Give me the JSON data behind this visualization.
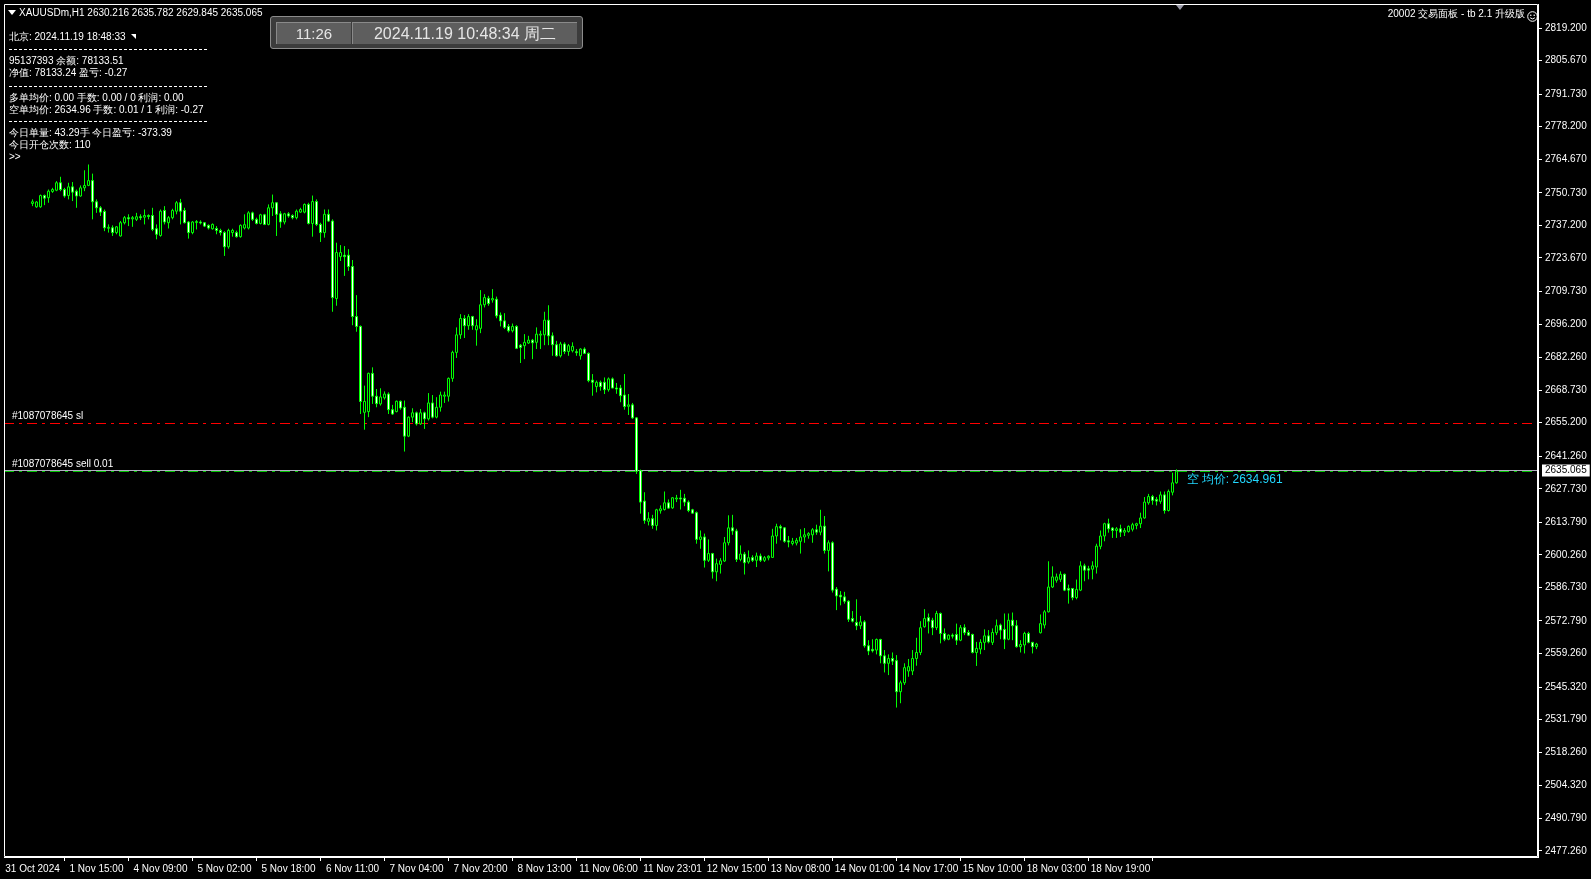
{
  "chart_data": {
    "type": "candlestick",
    "title": "XAUUSDm,H1 2630.216 2635.782 2629.845 2635.065",
    "categories": [
      "31 Oct 2024",
      null,
      null,
      null,
      null,
      null,
      null,
      null,
      null,
      null,
      null,
      null,
      null,
      null,
      null,
      null,
      "1 Nov 15:00",
      null,
      null,
      null,
      null,
      null,
      null,
      null,
      null,
      null,
      null,
      null,
      null,
      null,
      null,
      null,
      "4 Nov 09:00",
      null,
      null,
      null,
      null,
      null,
      null,
      null,
      null,
      null,
      null,
      null,
      null,
      null,
      null,
      null,
      "5 Nov 02:00",
      null,
      null,
      null,
      null,
      null,
      null,
      null,
      null,
      null,
      null,
      null,
      null,
      null,
      null,
      null,
      "5 Nov 18:00",
      null,
      null,
      null,
      null,
      null,
      null,
      null,
      null,
      null,
      null,
      null,
      null,
      null,
      null,
      null,
      "6 Nov 11:00",
      null,
      null,
      null,
      null,
      null,
      null,
      null,
      null,
      null,
      null,
      null,
      null,
      null,
      null,
      null,
      "7 Nov 04:00",
      null,
      null,
      null,
      null,
      null,
      null,
      null,
      null,
      null,
      null,
      null,
      null,
      null,
      null,
      null,
      "7 Nov 20:00",
      null,
      null,
      null,
      null,
      null,
      null,
      null,
      null,
      null,
      null,
      null,
      null,
      null,
      null,
      null,
      "8 Nov 13:00",
      null,
      null,
      null,
      null,
      null,
      null,
      null,
      null,
      null,
      null,
      null,
      null,
      null,
      null,
      null,
      "11 Nov 06:00",
      null,
      null,
      null,
      null,
      null,
      null,
      null,
      null,
      null,
      null,
      null,
      null,
      null,
      null,
      null,
      "11 Nov 23:01",
      null,
      null,
      null,
      null,
      null,
      null,
      null,
      null,
      null,
      null,
      null,
      null,
      null,
      null,
      null,
      "12 Nov 15:00",
      null,
      null,
      null,
      null,
      null,
      null,
      null,
      null,
      null,
      null,
      null,
      null,
      null,
      null,
      null,
      "13 Nov 08:00",
      null,
      null,
      null,
      null,
      null,
      null,
      null,
      null,
      null,
      null,
      null,
      null,
      null,
      null,
      null,
      "14 Nov 01:00",
      null,
      null,
      null,
      null,
      null,
      null,
      null,
      null,
      null,
      null,
      null,
      null,
      null,
      null,
      null,
      "14 Nov 17:00",
      null,
      null,
      null,
      null,
      null,
      null,
      null,
      null,
      null,
      null,
      null,
      null,
      null,
      null,
      null,
      "15 Nov 10:00",
      null,
      null,
      null,
      null,
      null,
      null,
      null,
      null,
      null,
      null,
      null,
      null,
      null,
      null,
      null,
      "18 Nov 03:00",
      null,
      null,
      null,
      null,
      null,
      null,
      null,
      null,
      null,
      null,
      null,
      null,
      null,
      null,
      null,
      "18 Nov 19:00",
      null,
      null,
      null,
      null,
      null,
      null,
      null,
      null,
      null,
      null,
      null,
      null,
      null,
      null,
      null,
      null,
      null,
      null,
      null,
      null,
      null,
      null,
      null,
      null,
      null,
      null,
      null,
      null,
      null,
      null,
      null,
      null,
      null,
      null,
      null,
      null,
      null,
      null,
      null,
      null,
      null,
      null,
      null,
      null,
      null,
      null,
      null,
      null,
      null,
      null,
      null,
      null,
      null,
      null,
      null,
      null,
      null,
      null,
      null,
      null,
      null,
      null,
      null,
      null,
      null,
      null,
      null,
      null,
      null,
      null,
      null,
      null,
      null,
      null,
      null,
      null,
      null,
      null,
      null,
      null,
      null,
      null,
      null,
      null,
      null,
      null,
      null,
      null,
      null,
      null,
      null,
      null,
      null,
      null,
      null,
      null,
      null,
      null,
      null,
      null,
      null,
      null,
      null
    ],
    "ohlc": [
      [
        2746.3,
        2748.0,
        2745.2,
        2747.0
      ],
      [
        2744.9,
        2747.3,
        2744.5,
        2746.9
      ],
      [
        2744.9,
        2750.0,
        2744.5,
        2749.6
      ],
      [
        2749.6,
        2750.0,
        2745.6,
        2748.5
      ],
      [
        2748.7,
        2752.1,
        2746.6,
        2751.4
      ],
      [
        2751.3,
        2752.8,
        2750.7,
        2752.1
      ],
      [
        2751.8,
        2755.6,
        2751.4,
        2754.9
      ],
      [
        2754.9,
        2757.4,
        2751.4,
        2752.1
      ],
      [
        2752.1,
        2752.8,
        2748.7,
        2749.4
      ],
      [
        2749.6,
        2754.9,
        2748.0,
        2753.2
      ],
      [
        2753.2,
        2755.2,
        2747.3,
        2751.0
      ],
      [
        2751.4,
        2752.1,
        2744.5,
        2749.4
      ],
      [
        2749.4,
        2753.8,
        2749.1,
        2752.8
      ],
      [
        2752.8,
        2760.1,
        2751.4,
        2753.8
      ],
      [
        2753.8,
        2762.5,
        2753.5,
        2755.8
      ],
      [
        2755.8,
        2758.7,
        2739.7,
        2747.0
      ],
      [
        2747.0,
        2748.0,
        2742.4,
        2744.5
      ],
      [
        2744.5,
        2745.2,
        2741.1,
        2742.7
      ],
      [
        2743.0,
        2743.8,
        2734.8,
        2736.2
      ],
      [
        2736.2,
        2737.6,
        2734.2,
        2736.4
      ],
      [
        2736.2,
        2737.2,
        2732.8,
        2734.2
      ],
      [
        2734.2,
        2736.9,
        2733.5,
        2736.6
      ],
      [
        2732.8,
        2739.0,
        2732.5,
        2738.3
      ],
      [
        2738.3,
        2741.1,
        2737.6,
        2740.4
      ],
      [
        2740.4,
        2741.8,
        2736.9,
        2739.9
      ],
      [
        2739.9,
        2741.1,
        2736.6,
        2740.4
      ],
      [
        2739.7,
        2742.4,
        2739.0,
        2740.8
      ],
      [
        2740.8,
        2741.8,
        2739.4,
        2740.6
      ],
      [
        2740.6,
        2743.8,
        2737.6,
        2741.3
      ],
      [
        2741.3,
        2741.8,
        2739.7,
        2741.1
      ],
      [
        2741.3,
        2744.5,
        2734.8,
        2735.5
      ],
      [
        2735.8,
        2737.6,
        2731.4,
        2733.5
      ],
      [
        2733.0,
        2743.8,
        2732.5,
        2743.1
      ],
      [
        2743.4,
        2745.2,
        2737.6,
        2738.6
      ],
      [
        2738.3,
        2741.1,
        2735.9,
        2740.4
      ],
      [
        2740.4,
        2744.1,
        2739.7,
        2743.4
      ],
      [
        2743.1,
        2747.3,
        2741.8,
        2746.6
      ],
      [
        2746.6,
        2748.2,
        2737.6,
        2743.1
      ],
      [
        2743.4,
        2744.5,
        2738.0,
        2738.3
      ],
      [
        2738.6,
        2739.0,
        2731.7,
        2734.2
      ],
      [
        2734.2,
        2739.0,
        2733.5,
        2738.6
      ],
      [
        2738.6,
        2739.4,
        2735.5,
        2738.8
      ],
      [
        2738.6,
        2739.3,
        2737.6,
        2738.3
      ],
      [
        2738.3,
        2738.6,
        2736.5,
        2736.9
      ],
      [
        2737.2,
        2737.6,
        2735.5,
        2736.1
      ],
      [
        2735.8,
        2738.0,
        2735.4,
        2737.6
      ],
      [
        2735.9,
        2736.9,
        2733.5,
        2735.1
      ],
      [
        2735.1,
        2735.8,
        2733.0,
        2734.2
      ],
      [
        2734.2,
        2734.8,
        2724.5,
        2728.3
      ],
      [
        2728.3,
        2735.8,
        2727.5,
        2735.1
      ],
      [
        2734.2,
        2735.8,
        2732.5,
        2735.1
      ],
      [
        2734.2,
        2735.0,
        2732.1,
        2732.5
      ],
      [
        2732.5,
        2737.6,
        2732.1,
        2737.2
      ],
      [
        2736.1,
        2741.8,
        2735.5,
        2737.5
      ],
      [
        2736.1,
        2743.1,
        2735.5,
        2742.4
      ],
      [
        2742.4,
        2742.9,
        2739.0,
        2739.7
      ],
      [
        2739.7,
        2740.4,
        2737.6,
        2738.0
      ],
      [
        2738.0,
        2742.0,
        2737.6,
        2741.6
      ],
      [
        2741.6,
        2742.0,
        2737.3,
        2737.6
      ],
      [
        2737.6,
        2745.9,
        2737.2,
        2744.5
      ],
      [
        2744.5,
        2750.0,
        2741.1,
        2746.6
      ],
      [
        2746.6,
        2746.9,
        2732.8,
        2741.8
      ],
      [
        2742.0,
        2743.1,
        2736.2,
        2738.6
      ],
      [
        2738.6,
        2742.4,
        2737.6,
        2742.0
      ],
      [
        2742.0,
        2742.7,
        2740.4,
        2741.1
      ],
      [
        2741.3,
        2741.8,
        2739.7,
        2740.4
      ],
      [
        2740.4,
        2743.8,
        2739.7,
        2743.1
      ],
      [
        2742.7,
        2744.5,
        2742.4,
        2743.8
      ],
      [
        2742.7,
        2746.3,
        2742.2,
        2745.9
      ],
      [
        2745.9,
        2746.6,
        2737.6,
        2738.0
      ],
      [
        2738.0,
        2749.6,
        2732.5,
        2747.1
      ],
      [
        2747.1,
        2748.0,
        2736.9,
        2737.6
      ],
      [
        2737.6,
        2738.3,
        2730.3,
        2734.2
      ],
      [
        2734.2,
        2743.8,
        2732.1,
        2741.8
      ],
      [
        2741.8,
        2743.8,
        2738.6,
        2739.0
      ],
      [
        2739.0,
        2739.7,
        2701.3,
        2707.2
      ],
      [
        2706.8,
        2730.0,
        2703.8,
        2725.9
      ],
      [
        2724.2,
        2729.0,
        2722.4,
        2725.9
      ],
      [
        2724.8,
        2728.6,
        2716.2,
        2724.2
      ],
      [
        2724.8,
        2727.3,
        2718.3,
        2720.1
      ],
      [
        2720.1,
        2722.8,
        2695.7,
        2699.3
      ],
      [
        2699.3,
        2708.2,
        2693.0,
        2695.2
      ],
      [
        2695.2,
        2695.6,
        2658.8,
        2664.0
      ],
      [
        2659.5,
        2670.6,
        2652.3,
        2664.0
      ],
      [
        2659.8,
        2676.0,
        2657.5,
        2675.7
      ],
      [
        2675.7,
        2678.2,
        2663.0,
        2666.2
      ],
      [
        2666.2,
        2669.2,
        2661.6,
        2663.1
      ],
      [
        2663.0,
        2669.5,
        2662.3,
        2665.9
      ],
      [
        2665.5,
        2668.2,
        2664.8,
        2667.1
      ],
      [
        2667.1,
        2667.8,
        2658.8,
        2660.6
      ],
      [
        2660.6,
        2662.6,
        2658.4,
        2658.8
      ],
      [
        2659.8,
        2664.4,
        2659.5,
        2664.1
      ],
      [
        2664.1,
        2664.4,
        2660.6,
        2661.3
      ],
      [
        2661.6,
        2664.4,
        2643.2,
        2649.6
      ],
      [
        2649.6,
        2657.8,
        2649.2,
        2657.5
      ],
      [
        2657.5,
        2661.2,
        2655.4,
        2659.3
      ],
      [
        2659.3,
        2659.8,
        2654.0,
        2654.7
      ],
      [
        2654.7,
        2660.9,
        2654.3,
        2659.3
      ],
      [
        2659.3,
        2659.8,
        2652.6,
        2656.8
      ],
      [
        2656.8,
        2667.5,
        2656.1,
        2663.4
      ],
      [
        2663.4,
        2666.7,
        2657.0,
        2657.5
      ],
      [
        2657.5,
        2665.8,
        2657.0,
        2661.6
      ],
      [
        2661.6,
        2668.1,
        2659.8,
        2666.7
      ],
      [
        2666.2,
        2668.1,
        2663.4,
        2666.7
      ],
      [
        2666.2,
        2674.0,
        2664.0,
        2673.6
      ],
      [
        2673.6,
        2685.1,
        2672.2,
        2684.4
      ],
      [
        2684.4,
        2694.8,
        2682.1,
        2691.7
      ],
      [
        2691.7,
        2700.3,
        2690.0,
        2698.5
      ],
      [
        2698.5,
        2699.9,
        2690.4,
        2695.5
      ],
      [
        2695.5,
        2700.3,
        2693.8,
        2699.3
      ],
      [
        2699.3,
        2699.6,
        2693.8,
        2695.5
      ],
      [
        2693.8,
        2698.2,
        2687.2,
        2695.5
      ],
      [
        2694.4,
        2710.3,
        2692.4,
        2704.2
      ],
      [
        2704.2,
        2708.6,
        2703.1,
        2707.2
      ],
      [
        2706.9,
        2707.9,
        2703.8,
        2704.7
      ],
      [
        2706.2,
        2710.7,
        2705.1,
        2706.8
      ],
      [
        2706.5,
        2707.6,
        2698.6,
        2699.6
      ],
      [
        2699.9,
        2701.0,
        2695.2,
        2697.5
      ],
      [
        2697.5,
        2700.7,
        2694.1,
        2694.8
      ],
      [
        2695.2,
        2696.2,
        2692.7,
        2693.4
      ],
      [
        2693.4,
        2696.4,
        2692.7,
        2695.2
      ],
      [
        2695.2,
        2695.7,
        2685.8,
        2686.1
      ],
      [
        2687.4,
        2687.9,
        2680.0,
        2686.5
      ],
      [
        2687.2,
        2692.0,
        2681.6,
        2688.6
      ],
      [
        2688.3,
        2691.3,
        2687.9,
        2689.5
      ],
      [
        2689.5,
        2690.0,
        2681.6,
        2688.4
      ],
      [
        2688.6,
        2694.8,
        2685.8,
        2692.0
      ],
      [
        2691.7,
        2693.4,
        2685.8,
        2692.0
      ],
      [
        2691.7,
        2701.3,
        2687.4,
        2697.8
      ],
      [
        2697.8,
        2704.0,
        2687.4,
        2691.3
      ],
      [
        2691.3,
        2692.7,
        2683.0,
        2687.6
      ],
      [
        2687.6,
        2689.2,
        2682.6,
        2683.0
      ],
      [
        2683.0,
        2688.8,
        2682.3,
        2687.9
      ],
      [
        2687.9,
        2688.6,
        2683.7,
        2684.8
      ],
      [
        2684.8,
        2687.9,
        2683.0,
        2687.2
      ],
      [
        2685.1,
        2688.6,
        2684.4,
        2686.9
      ],
      [
        2684.7,
        2685.8,
        2683.0,
        2684.4
      ],
      [
        2683.0,
        2686.1,
        2681.4,
        2685.8
      ],
      [
        2685.8,
        2686.5,
        2683.7,
        2684.0
      ],
      [
        2684.0,
        2684.4,
        2672.0,
        2672.7
      ],
      [
        2672.9,
        2675.4,
        2666.4,
        2672.0
      ],
      [
        2670.2,
        2672.7,
        2667.8,
        2672.0
      ],
      [
        2672.0,
        2672.7,
        2668.5,
        2670.2
      ],
      [
        2672.0,
        2674.0,
        2667.1,
        2668.9
      ],
      [
        2668.9,
        2674.0,
        2668.1,
        2673.4
      ],
      [
        2673.4,
        2674.0,
        2669.5,
        2669.6
      ],
      [
        2669.6,
        2671.7,
        2667.2,
        2669.2
      ],
      [
        2669.6,
        2670.9,
        2663.7,
        2666.4
      ],
      [
        2666.7,
        2675.4,
        2660.6,
        2661.9
      ],
      [
        2662.0,
        2667.1,
        2658.4,
        2662.6
      ],
      [
        2662.6,
        2663.4,
        2656.8,
        2657.2
      ],
      [
        2657.2,
        2657.5,
        2633.9,
        2635.0
      ],
      [
        2635.3,
        2635.7,
        2617.4,
        2622.2
      ],
      [
        2622.6,
        2626.3,
        2613.2,
        2614.6
      ],
      [
        2614.2,
        2618.0,
        2612.5,
        2615.3
      ],
      [
        2615.3,
        2616.9,
        2611.1,
        2612.5
      ],
      [
        2612.5,
        2619.4,
        2610.4,
        2619.0
      ],
      [
        2618.6,
        2620.8,
        2617.4,
        2619.4
      ],
      [
        2619.1,
        2626.6,
        2618.7,
        2621.9
      ],
      [
        2621.9,
        2623.3,
        2619.4,
        2619.7
      ],
      [
        2619.8,
        2624.3,
        2619.4,
        2624.0
      ],
      [
        2623.8,
        2625.2,
        2622.2,
        2623.9
      ],
      [
        2623.9,
        2627.3,
        2619.1,
        2623.8
      ],
      [
        2623.8,
        2625.6,
        2620.5,
        2622.2
      ],
      [
        2622.2,
        2622.9,
        2618.0,
        2618.7
      ],
      [
        2619.0,
        2619.4,
        2617.4,
        2617.6
      ],
      [
        2617.8,
        2618.3,
        2604.9,
        2606.7
      ],
      [
        2606.7,
        2610.4,
        2602.8,
        2607.7
      ],
      [
        2607.7,
        2609.1,
        2595.0,
        2598.0
      ],
      [
        2598.0,
        2606.7,
        2597.3,
        2600.8
      ],
      [
        2600.8,
        2601.1,
        2590.4,
        2593.2
      ],
      [
        2593.2,
        2598.7,
        2589.3,
        2596.6
      ],
      [
        2596.3,
        2598.9,
        2592.5,
        2597.8
      ],
      [
        2597.7,
        2607.7,
        2597.3,
        2605.3
      ],
      [
        2605.3,
        2616.7,
        2604.2,
        2611.5
      ],
      [
        2611.5,
        2616.9,
        2608.6,
        2610.2
      ],
      [
        2610.2,
        2611.1,
        2597.3,
        2598.4
      ],
      [
        2598.4,
        2604.2,
        2597.6,
        2600.6
      ],
      [
        2600.6,
        2601.5,
        2592.1,
        2597.0
      ],
      [
        2597.3,
        2602.1,
        2596.6,
        2599.1
      ],
      [
        2599.1,
        2600.1,
        2597.3,
        2598.0
      ],
      [
        2598.0,
        2601.2,
        2595.2,
        2599.8
      ],
      [
        2599.8,
        2600.8,
        2597.3,
        2598.0
      ],
      [
        2598.0,
        2599.8,
        2597.3,
        2599.1
      ],
      [
        2599.0,
        2600.1,
        2598.0,
        2599.7
      ],
      [
        2599.2,
        2611.1,
        2599.0,
        2608.1
      ],
      [
        2608.1,
        2613.2,
        2604.9,
        2612.0
      ],
      [
        2612.0,
        2612.8,
        2606.3,
        2611.4
      ],
      [
        2611.5,
        2611.8,
        2605.3,
        2605.9
      ],
      [
        2606.1,
        2608.1,
        2603.4,
        2605.6
      ],
      [
        2605.0,
        2607.3,
        2604.2,
        2605.9
      ],
      [
        2605.2,
        2607.3,
        2604.2,
        2606.3
      ],
      [
        2605.9,
        2610.9,
        2600.8,
        2607.7
      ],
      [
        2607.7,
        2611.4,
        2605.3,
        2608.6
      ],
      [
        2608.4,
        2609.7,
        2607.0,
        2609.1
      ],
      [
        2608.6,
        2611.4,
        2605.3,
        2610.7
      ],
      [
        2610.7,
        2612.8,
        2608.6,
        2609.7
      ],
      [
        2609.7,
        2619.0,
        2608.4,
        2612.2
      ],
      [
        2612.2,
        2616.4,
        2600.8,
        2602.1
      ],
      [
        2602.1,
        2606.3,
        2593.4,
        2605.3
      ],
      [
        2605.3,
        2605.9,
        2584.6,
        2585.6
      ],
      [
        2586.0,
        2586.9,
        2577.3,
        2583.2
      ],
      [
        2583.5,
        2585.2,
        2579.3,
        2582.8
      ],
      [
        2582.8,
        2584.9,
        2580.0,
        2581.0
      ],
      [
        2581.0,
        2581.4,
        2572.4,
        2573.5
      ],
      [
        2573.8,
        2576.9,
        2572.2,
        2572.7
      ],
      [
        2572.2,
        2581.8,
        2569.0,
        2570.8
      ],
      [
        2570.8,
        2574.9,
        2569.4,
        2572.4
      ],
      [
        2572.4,
        2573.1,
        2561.7,
        2562.5
      ],
      [
        2562.5,
        2564.8,
        2558.6,
        2560.3
      ],
      [
        2561.0,
        2565.2,
        2559.7,
        2560.4
      ],
      [
        2560.7,
        2565.5,
        2558.9,
        2565.1
      ],
      [
        2565.1,
        2565.4,
        2555.2,
        2558.3
      ],
      [
        2558.3,
        2560.7,
        2551.4,
        2555.2
      ],
      [
        2555.2,
        2558.9,
        2550.3,
        2557.2
      ],
      [
        2557.2,
        2559.7,
        2554.5,
        2556.1
      ],
      [
        2556.3,
        2558.6,
        2536.8,
        2543.4
      ],
      [
        2543.4,
        2548.0,
        2538.6,
        2547.1
      ],
      [
        2547.1,
        2555.2,
        2546.2,
        2553.4
      ],
      [
        2552.0,
        2557.0,
        2549.6,
        2553.8
      ],
      [
        2552.0,
        2560.7,
        2550.3,
        2557.2
      ],
      [
        2557.2,
        2565.8,
        2554.2,
        2559.7
      ],
      [
        2559.7,
        2572.7,
        2558.6,
        2570.0
      ],
      [
        2570.4,
        2577.7,
        2570.0,
        2573.8
      ],
      [
        2574.2,
        2575.9,
        2567.6,
        2572.7
      ],
      [
        2573.1,
        2574.1,
        2566.9,
        2570.0
      ],
      [
        2570.0,
        2577.0,
        2569.0,
        2575.9
      ],
      [
        2575.9,
        2576.3,
        2563.5,
        2567.6
      ],
      [
        2567.6,
        2569.7,
        2564.4,
        2565.2
      ],
      [
        2565.2,
        2567.2,
        2564.8,
        2566.9
      ],
      [
        2566.9,
        2567.6,
        2565.5,
        2566.7
      ],
      [
        2567.2,
        2571.7,
        2562.8,
        2564.8
      ],
      [
        2564.8,
        2571.1,
        2564.4,
        2570.0
      ],
      [
        2570.0,
        2571.4,
        2566.9,
        2567.9
      ],
      [
        2568.0,
        2569.0,
        2566.5,
        2566.9
      ],
      [
        2567.2,
        2567.5,
        2559.3,
        2559.7
      ],
      [
        2559.7,
        2564.1,
        2554.1,
        2561.4
      ],
      [
        2561.1,
        2565.2,
        2559.0,
        2563.9
      ],
      [
        2563.9,
        2569.3,
        2560.7,
        2566.6
      ],
      [
        2566.6,
        2569.0,
        2563.5,
        2564.1
      ],
      [
        2563.9,
        2569.7,
        2562.8,
        2568.0
      ],
      [
        2567.9,
        2573.4,
        2566.9,
        2570.8
      ],
      [
        2571.1,
        2571.7,
        2565.2,
        2569.0
      ],
      [
        2569.3,
        2575.9,
        2561.1,
        2565.2
      ],
      [
        2565.2,
        2575.9,
        2564.8,
        2573.1
      ],
      [
        2573.1,
        2576.3,
        2564.8,
        2570.8
      ],
      [
        2570.8,
        2573.1,
        2561.7,
        2562.1
      ],
      [
        2562.1,
        2564.8,
        2559.7,
        2563.0
      ],
      [
        2562.8,
        2568.3,
        2559.3,
        2567.6
      ],
      [
        2567.6,
        2568.3,
        2563.5,
        2563.9
      ],
      [
        2563.9,
        2564.1,
        2559.3,
        2562.1
      ],
      [
        2562.1,
        2563.7,
        2561.1,
        2563.2
      ],
      [
        2567.9,
        2575.5,
        2567.6,
        2571.7
      ],
      [
        2571.1,
        2577.3,
        2569.7,
        2576.6
      ],
      [
        2576.6,
        2597.6,
        2576.3,
        2586.9
      ],
      [
        2586.9,
        2595.5,
        2586.5,
        2591.1
      ],
      [
        2589.7,
        2592.5,
        2588.7,
        2591.1
      ],
      [
        2590.1,
        2593.4,
        2589.0,
        2592.2
      ],
      [
        2592.2,
        2592.5,
        2585.2,
        2585.6
      ],
      [
        2586.3,
        2587.9,
        2580.0,
        2585.6
      ],
      [
        2586.3,
        2586.5,
        2581.4,
        2582.5
      ],
      [
        2582.5,
        2590.0,
        2581.8,
        2585.9
      ],
      [
        2585.6,
        2597.6,
        2585.2,
        2595.7
      ],
      [
        2595.7,
        2596.6,
        2589.3,
        2593.9
      ],
      [
        2594.5,
        2595.7,
        2590.1,
        2593.9
      ],
      [
        2594.3,
        2597.6,
        2590.1,
        2595.7
      ],
      [
        2595.2,
        2604.9,
        2592.5,
        2603.9
      ],
      [
        2603.8,
        2610.4,
        2602.6,
        2608.1
      ],
      [
        2608.1,
        2613.6,
        2605.9,
        2613.2
      ],
      [
        2613.2,
        2615.3,
        2609.5,
        2611.1
      ],
      [
        2611.4,
        2611.8,
        2607.3,
        2610.4
      ],
      [
        2610.4,
        2611.8,
        2607.3,
        2611.1
      ],
      [
        2611.1,
        2612.8,
        2607.7,
        2609.7
      ],
      [
        2609.7,
        2611.4,
        2608.1,
        2610.4
      ],
      [
        2610.0,
        2612.5,
        2609.5,
        2612.1
      ],
      [
        2610.9,
        2613.6,
        2610.0,
        2612.8
      ],
      [
        2612.5,
        2613.6,
        2610.9,
        2613.2
      ],
      [
        2613.2,
        2617.8,
        2611.4,
        2615.6
      ],
      [
        2615.6,
        2624.3,
        2615.3,
        2622.2
      ],
      [
        2621.9,
        2625.6,
        2621.1,
        2624.5
      ],
      [
        2624.5,
        2625.2,
        2621.1,
        2622.9
      ],
      [
        2623.3,
        2624.3,
        2620.8,
        2622.6
      ],
      [
        2622.5,
        2626.6,
        2621.5,
        2625.2
      ],
      [
        2625.2,
        2626.6,
        2617.4,
        2618.7
      ],
      [
        2618.7,
        2627.4,
        2618.3,
        2626.6
      ],
      [
        2626.3,
        2634.4,
        2625.0,
        2630.2
      ],
      [
        2630.216,
        2635.782,
        2629.845,
        2635.065
      ],
      null,
      null,
      null,
      null,
      null,
      null,
      null,
      null,
      null,
      null,
      null,
      null,
      null,
      null,
      null,
      null,
      null,
      null,
      null,
      null,
      null,
      null,
      null,
      null,
      null,
      null,
      null,
      null,
      null,
      null,
      null,
      null,
      null,
      null,
      null,
      null,
      null,
      null,
      null,
      null,
      null,
      null,
      null,
      null,
      null,
      null,
      null,
      null,
      null,
      null,
      null,
      null,
      null,
      null,
      null,
      null,
      null,
      null,
      null,
      null,
      null,
      null,
      null,
      null,
      null,
      null,
      null,
      null,
      null,
      null,
      null,
      null,
      null,
      null,
      null,
      null,
      null,
      null,
      null,
      null,
      null,
      null,
      null,
      null,
      null,
      null,
      null,
      null,
      null
    ],
    "color": "#00ff00",
    "ylim": [
      2474.7,
      2829.2
    ],
    "yticks": [
      {
        "value": 2477.26,
        "label": "2477.260"
      },
      {
        "value": 2490.79,
        "label": "2490.790"
      },
      {
        "value": 2504.32,
        "label": "2504.320"
      },
      {
        "value": 2518.26,
        "label": "2518.260"
      },
      {
        "value": 2531.79,
        "label": "2531.790"
      },
      {
        "value": 2545.32,
        "label": "2545.320"
      },
      {
        "value": 2559.26,
        "label": "2559.260"
      },
      {
        "value": 2572.79,
        "label": "2572.790"
      },
      {
        "value": 2586.73,
        "label": "2586.730"
      },
      {
        "value": 2600.26,
        "label": "2600.260"
      },
      {
        "value": 2613.79,
        "label": "2613.790"
      },
      {
        "value": 2627.73,
        "label": "2627.730"
      },
      {
        "value": 2641.26,
        "label": "2641.260"
      },
      {
        "value": 2655.2,
        "label": "2655.200"
      },
      {
        "value": 2668.73,
        "label": "2668.730"
      },
      {
        "value": 2682.26,
        "label": "2682.260"
      },
      {
        "value": 2696.2,
        "label": "2696.200"
      },
      {
        "value": 2709.73,
        "label": "2709.730"
      },
      {
        "value": 2723.67,
        "label": "2723.670"
      },
      {
        "value": 2737.2,
        "label": "2737.200"
      },
      {
        "value": 2750.73,
        "label": "2750.730"
      },
      {
        "value": 2764.67,
        "label": "2764.670"
      },
      {
        "value": 2778.2,
        "label": "2778.200"
      },
      {
        "value": 2791.73,
        "label": "2791.730"
      },
      {
        "value": 2805.67,
        "label": "2805.670"
      },
      {
        "value": 2819.2,
        "label": "2819.200"
      }
    ],
    "ref_lines": [
      {
        "axis": "y",
        "value": 2655,
        "label": "#1087078645 sl",
        "color": "#ff0000",
        "line_style": "dashed"
      },
      {
        "axis": "y",
        "value": 2634.96,
        "label": "#1087078645 sell 0.01",
        "color": "#00c000",
        "line_style": "dashed"
      },
      {
        "axis": "y",
        "value": 2635.065,
        "label": "2635.065",
        "color": "#b0b0c0"
      }
    ],
    "annotations": [
      "北京: 2024.11.19 18:48:33",
      "95137393 余额: 78133.51",
      "净值: 78133.24 盈亏: -0.27",
      "多单均价: 0.00 手数: 0.00 / 0 利润: 0.00",
      "空单均价: 2634.96 手数: 0.01 / 1 利润: -0.27",
      "今日单量: 43.29手 今日盈亏: -373.39",
      "今日开仓次数: 110",
      ">>",
      "11:26",
      "2024.11.19 10:48:34 周二",
      "20002 交易面板 - tb 2.1 升级版",
      {
        "text": "空 均价: 2634.961",
        "y": 2634.961
      }
    ]
  }
}
